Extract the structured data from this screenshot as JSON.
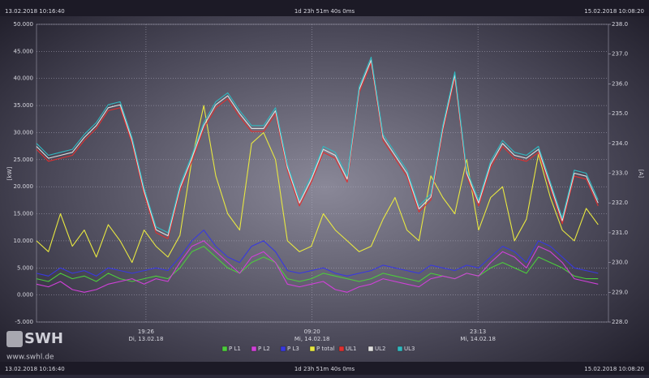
{
  "chart_data": {
    "type": "line",
    "header_left": "13.02.2018 10:16:40",
    "header_center": "1d 23h 51m 40s 0ms",
    "header_right": "15.02.2018 10:08:20",
    "footer_left": "13.02.2018 10:16:40",
    "footer_center": "1d 23h 51m 40s 0ms",
    "footer_right": "15.02.2018 10:08:20",
    "ylabel": "[kW]",
    "y2label": "[A]",
    "logo": "SWH",
    "website": "www.swhl.de",
    "grid": true,
    "xlim": [
      0,
      47.86
    ],
    "xticks": [
      {
        "value": 9.16,
        "label": "19:26",
        "date": "Di, 13.02.18"
      },
      {
        "value": 23.06,
        "label": "09:20",
        "date": "Mi, 14.02.18"
      },
      {
        "value": 36.94,
        "label": "23:13",
        "date": "Mi, 14.02.18"
      }
    ],
    "ylim": [
      -5,
      50
    ],
    "yticks": [
      {
        "value": -5,
        "label": "-5.000"
      },
      {
        "value": 0,
        "label": "0.000"
      },
      {
        "value": 5,
        "label": "5.000"
      },
      {
        "value": 10,
        "label": "10.000"
      },
      {
        "value": 15,
        "label": "15.000"
      },
      {
        "value": 20,
        "label": "20.000"
      },
      {
        "value": 25,
        "label": "25.000"
      },
      {
        "value": 30,
        "label": "30.000"
      },
      {
        "value": 35,
        "label": "35.000"
      },
      {
        "value": 40,
        "label": "40.000"
      },
      {
        "value": 45,
        "label": "45.000"
      },
      {
        "value": 50,
        "label": "50.000"
      }
    ],
    "y2lim": [
      228,
      238
    ],
    "y2ticks": [
      {
        "value": 228,
        "label": "228.0"
      },
      {
        "value": 229,
        "label": "229.0"
      },
      {
        "value": 230,
        "label": "230.0"
      },
      {
        "value": 231,
        "label": "231.0"
      },
      {
        "value": 232,
        "label": "232.0"
      },
      {
        "value": 233,
        "label": "233.0"
      },
      {
        "value": 234,
        "label": "234.0"
      },
      {
        "value": 235,
        "label": "235.0"
      },
      {
        "value": 236,
        "label": "236.0"
      },
      {
        "value": 237,
        "label": "237.0"
      },
      {
        "value": 238,
        "label": "238.0"
      }
    ],
    "x": [
      0,
      1,
      2,
      3,
      4,
      5,
      6,
      7,
      8,
      9,
      10,
      11,
      12,
      13,
      14,
      15,
      16,
      17,
      18,
      19,
      20,
      21,
      22,
      23,
      24,
      25,
      26,
      27,
      28,
      29,
      30,
      31,
      32,
      33,
      34,
      35,
      36,
      37,
      38,
      39,
      40,
      41,
      42,
      43,
      44,
      45,
      46,
      47
    ],
    "series": [
      {
        "name": "P L1",
        "color": "#4ccc3c",
        "values": [
          3,
          2.5,
          4,
          3,
          3.5,
          2.5,
          4,
          3,
          2.5,
          3,
          3.5,
          3,
          5,
          8,
          9,
          7,
          5,
          4,
          6,
          7,
          6,
          3,
          2.5,
          3,
          4,
          3.5,
          3,
          2.5,
          3,
          4,
          3.5,
          3,
          2.5,
          4,
          3.5,
          3,
          4,
          3.5,
          5,
          6,
          5,
          4,
          7,
          6,
          5,
          3.5,
          3,
          3
        ]
      },
      {
        "name": "P L2",
        "color": "#d040d8",
        "values": [
          2,
          1.5,
          2.5,
          1,
          0.5,
          1,
          2,
          2.5,
          3,
          2,
          3,
          2.5,
          6,
          9,
          10,
          8,
          6,
          4,
          7,
          8,
          6,
          2,
          1.5,
          2,
          2.5,
          1,
          0.5,
          1.5,
          2,
          3,
          2.5,
          2,
          1.5,
          3,
          3.5,
          3,
          4,
          3.5,
          6,
          8,
          7,
          5,
          9,
          8,
          6,
          3,
          2.5,
          2
        ]
      },
      {
        "name": "P L3",
        "color": "#3838e0",
        "values": [
          4,
          3.5,
          5,
          4,
          4.5,
          3.5,
          5,
          4.5,
          4,
          4.5,
          5,
          4.5,
          7,
          10,
          12,
          9,
          7,
          6,
          9,
          10,
          8,
          4.5,
          4,
          4.5,
          5,
          4,
          3.5,
          4,
          4.5,
          5.5,
          5,
          4.5,
          4,
          5.5,
          5,
          4.5,
          5.5,
          5,
          7,
          9,
          8,
          6,
          10,
          9,
          7,
          5,
          4.5,
          4
        ]
      },
      {
        "name": "P total",
        "color": "#e8e840",
        "values": [
          10,
          8,
          15,
          9,
          12,
          7,
          13,
          10,
          6,
          12,
          9,
          7,
          11,
          25,
          35,
          22,
          15,
          12,
          28,
          30,
          25,
          10,
          8,
          9,
          15,
          12,
          10,
          8,
          9,
          14,
          18,
          12,
          10,
          22,
          18,
          15,
          25,
          12,
          18,
          20,
          10,
          14,
          26,
          18,
          12,
          10,
          16,
          13
        ]
      },
      {
        "name": "UL1",
        "color": "#e03030",
        "axis": "y2",
        "values": [
          233.8,
          233.4,
          233.5,
          233.6,
          234.1,
          234.5,
          235.1,
          235.2,
          234,
          232.3,
          231,
          230.8,
          232.4,
          233.4,
          234.5,
          235.2,
          235.5,
          234.9,
          234.4,
          234.4,
          235,
          233.1,
          231.9,
          232.7,
          233.7,
          233.5,
          232.7,
          235.7,
          236.7,
          234.1,
          233.5,
          232.9,
          231.7,
          232.1,
          234.4,
          236.2,
          232.9,
          231.9,
          233.2,
          233.9,
          233.5,
          233.4,
          233.7,
          232.5,
          231.3,
          232.9,
          232.8,
          231.9
        ]
      },
      {
        "name": "UL2",
        "color": "#e0e0e0",
        "axis": "y2",
        "values": [
          233.9,
          233.5,
          233.6,
          233.7,
          234.2,
          234.6,
          235.2,
          235.3,
          234.1,
          232.4,
          231.1,
          230.9,
          232.5,
          233.5,
          234.6,
          235.3,
          235.6,
          235,
          234.5,
          234.5,
          235.1,
          233.2,
          232,
          232.8,
          233.8,
          233.6,
          232.8,
          235.8,
          236.8,
          234.2,
          233.6,
          233,
          231.8,
          232.2,
          234.5,
          236.3,
          233,
          232,
          233.3,
          234,
          233.6,
          233.5,
          233.8,
          232.6,
          231.4,
          233,
          232.9,
          232
        ]
      },
      {
        "name": "UL3",
        "color": "#30b8c0",
        "axis": "y2",
        "values": [
          234,
          233.6,
          233.7,
          233.8,
          234.3,
          234.7,
          235.3,
          235.4,
          234.2,
          232.5,
          231.2,
          231,
          232.6,
          233.6,
          234.7,
          235.4,
          235.7,
          235.1,
          234.6,
          234.6,
          235.2,
          233.3,
          232.1,
          232.9,
          233.9,
          233.7,
          232.9,
          235.9,
          236.9,
          234.3,
          233.7,
          233.1,
          231.9,
          232.3,
          234.6,
          236.4,
          233.1,
          232.1,
          233.4,
          234.1,
          233.7,
          233.6,
          233.9,
          232.7,
          231.5,
          233.1,
          233,
          232.1
        ]
      }
    ]
  }
}
